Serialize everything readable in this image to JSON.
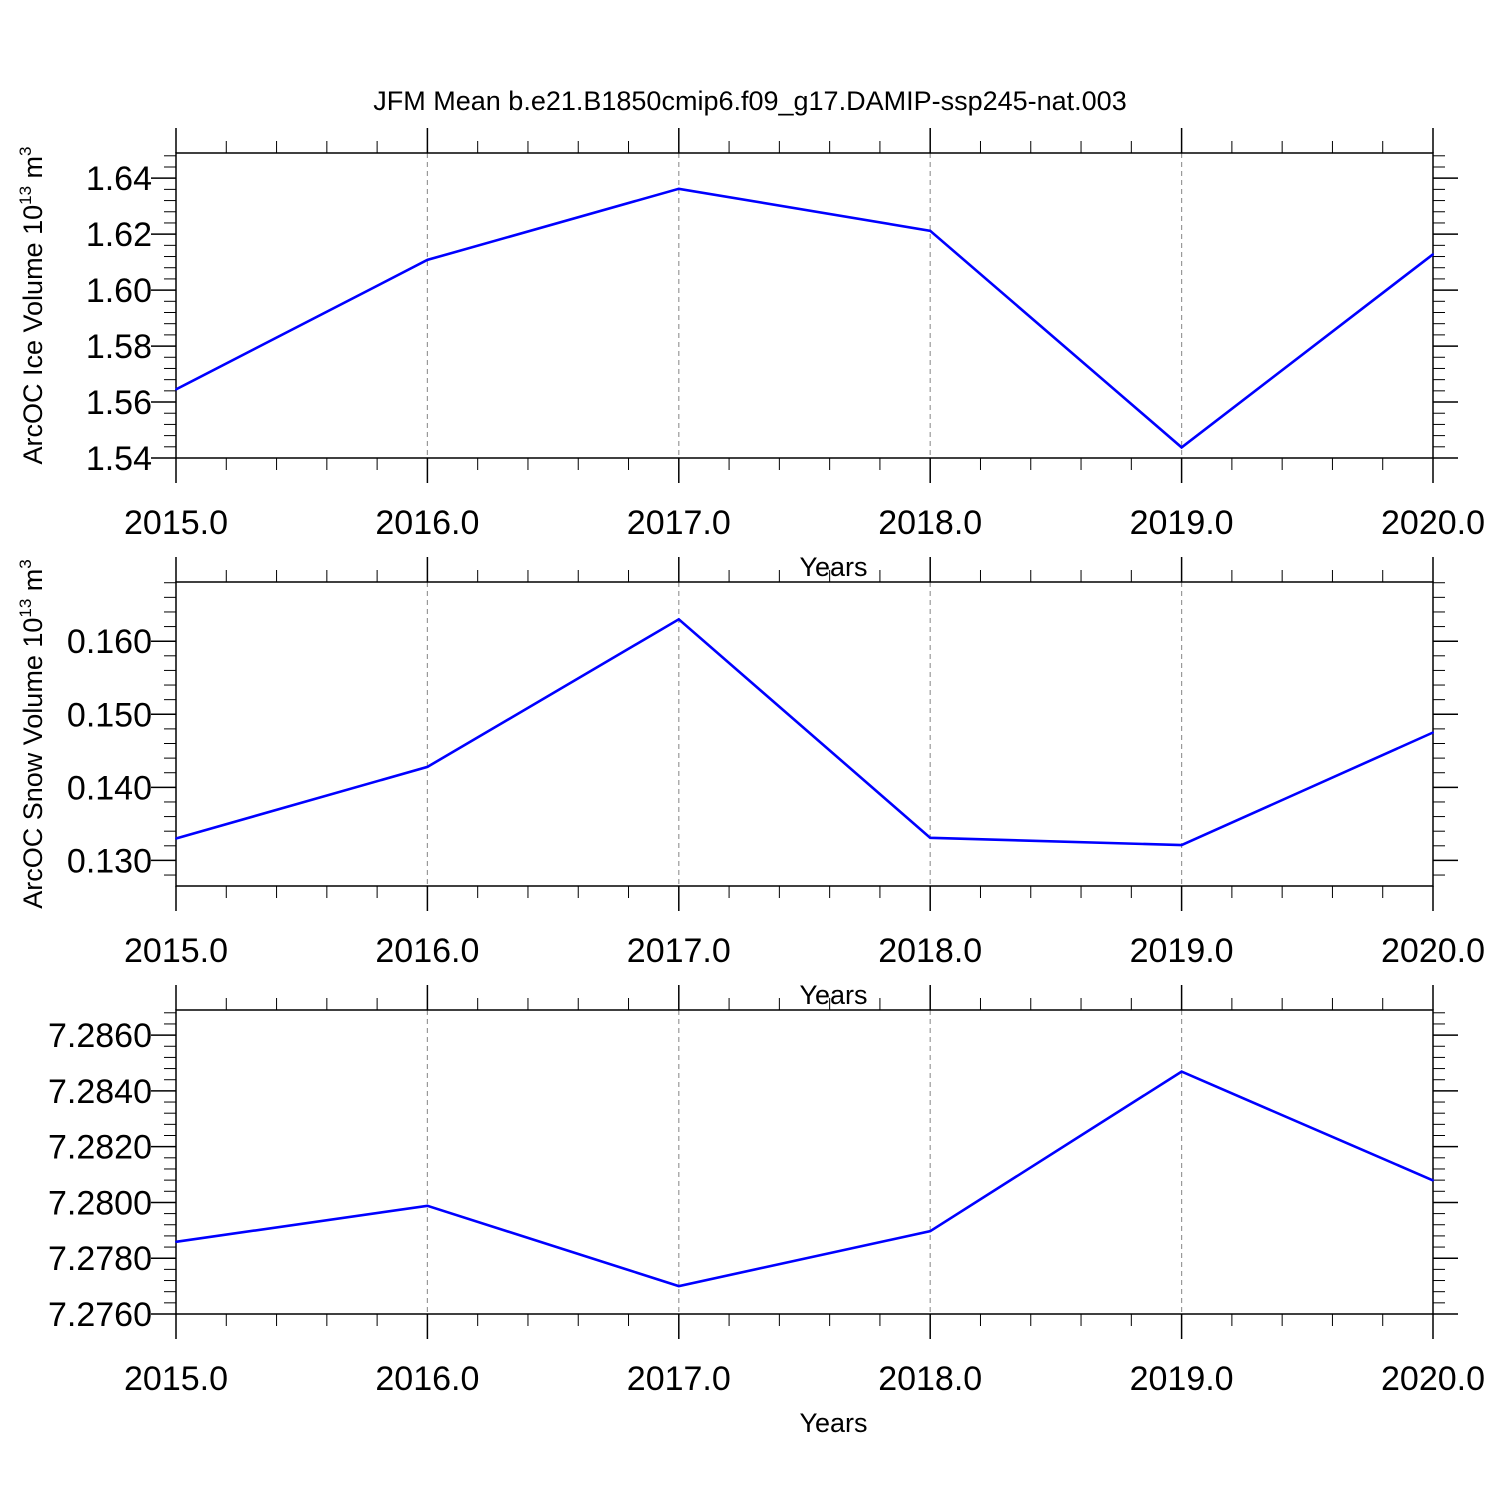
{
  "figure": {
    "title": "JFM Mean b.e21.B1850cmip6.f09_g17.DAMIP-ssp245-nat.003"
  },
  "chart_data": [
    {
      "type": "line",
      "x": [
        2015,
        2016,
        2017,
        2018,
        2019,
        2020
      ],
      "series": [
        {
          "values": [
            1.5645,
            1.6108,
            1.6362,
            1.6212,
            1.5438,
            1.6128
          ]
        }
      ],
      "xlabel": "Years",
      "ylabel": "ArcOC Ice Volume 10",
      "ylabel_exponent": "13",
      "ylabel_unit": "m",
      "ylabel_unit_exponent": "3",
      "xlim": [
        2015,
        2020
      ],
      "ylim": [
        1.54,
        1.649
      ],
      "xticks": [
        2015,
        2016,
        2017,
        2018,
        2019,
        2020
      ],
      "xtick_labels": [
        "2015.0",
        "2016.0",
        "2017.0",
        "2018.0",
        "2019.0",
        "2020.0"
      ],
      "yticks": [
        1.54,
        1.56,
        1.58,
        1.6,
        1.62,
        1.64
      ],
      "ytick_labels": [
        "1.54",
        "1.56",
        "1.58",
        "1.60",
        "1.62",
        "1.64"
      ],
      "y_minor_step": 0.004,
      "x_minor_step": 0.2,
      "grid": "x-major dashed",
      "line_color": "#0000ff"
    },
    {
      "type": "line",
      "x": [
        2015,
        2016,
        2017,
        2018,
        2019,
        2020
      ],
      "series": [
        {
          "values": [
            0.133,
            0.1428,
            0.163,
            0.1331,
            0.1321,
            0.1475
          ]
        }
      ],
      "xlabel": "Years",
      "ylabel": "ArcOC Snow Volume 10",
      "ylabel_exponent": "13",
      "ylabel_unit": "m",
      "ylabel_unit_exponent": "3",
      "xlim": [
        2015,
        2020
      ],
      "ylim": [
        0.1265,
        0.1681
      ],
      "xticks": [
        2015,
        2016,
        2017,
        2018,
        2019,
        2020
      ],
      "xtick_labels": [
        "2015.0",
        "2016.0",
        "2017.0",
        "2018.0",
        "2019.0",
        "2020.0"
      ],
      "yticks": [
        0.13,
        0.14,
        0.15,
        0.16
      ],
      "ytick_labels": [
        "0.130",
        "0.140",
        "0.150",
        "0.160"
      ],
      "y_minor_step": 0.002,
      "x_minor_step": 0.2,
      "grid": "x-major dashed",
      "line_color": "#0000ff"
    },
    {
      "type": "line",
      "x": [
        2015,
        2016,
        2017,
        2018,
        2019,
        2020
      ],
      "series": [
        {
          "values": [
            7.27859,
            7.27988,
            7.277,
            7.27897,
            7.28469,
            7.28079
          ]
        }
      ],
      "xlabel": "Years",
      "ylabel": "",
      "xlim": [
        2015,
        2020
      ],
      "ylim": [
        7.276,
        7.2869
      ],
      "xticks": [
        2015,
        2016,
        2017,
        2018,
        2019,
        2020
      ],
      "xtick_labels": [
        "2015.0",
        "2016.0",
        "2017.0",
        "2018.0",
        "2019.0",
        "2020.0"
      ],
      "yticks": [
        7.276,
        7.278,
        7.28,
        7.282,
        7.284,
        7.286
      ],
      "ytick_labels": [
        "7.2760",
        "7.2780",
        "7.2800",
        "7.2820",
        "7.2840",
        "7.2860"
      ],
      "y_minor_step": 0.0004,
      "x_minor_step": 0.2,
      "grid": "x-major dashed",
      "line_color": "#0000ff"
    }
  ]
}
